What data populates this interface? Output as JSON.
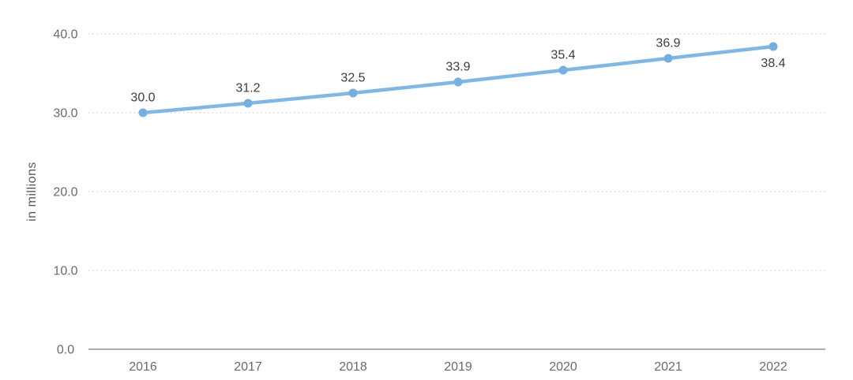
{
  "chart_data": {
    "type": "line",
    "categories": [
      "2016",
      "2017",
      "2018",
      "2019",
      "2020",
      "2021",
      "2022"
    ],
    "values": [
      30.0,
      31.2,
      32.5,
      33.9,
      35.4,
      36.9,
      38.4
    ],
    "data_labels": [
      "30.0",
      "31.2",
      "32.5",
      "33.9",
      "35.4",
      "36.9",
      "38.4"
    ],
    "title": "",
    "xlabel": "",
    "ylabel": "in millions",
    "ylim": [
      0,
      40
    ],
    "yticks": [
      0,
      10,
      20,
      30,
      40
    ],
    "ytick_labels": [
      "0.0",
      "10.0",
      "20.0",
      "30.0",
      "40.0"
    ],
    "grid": "horizontal-dotted",
    "legend": "none",
    "colors": {
      "line": "#82b7e3",
      "marker": "#74afdf",
      "grid": "#dddde2",
      "axis_line": "#929292",
      "tick_text": "#6a6a6f",
      "data_label_text": "#3d3d3f"
    }
  }
}
